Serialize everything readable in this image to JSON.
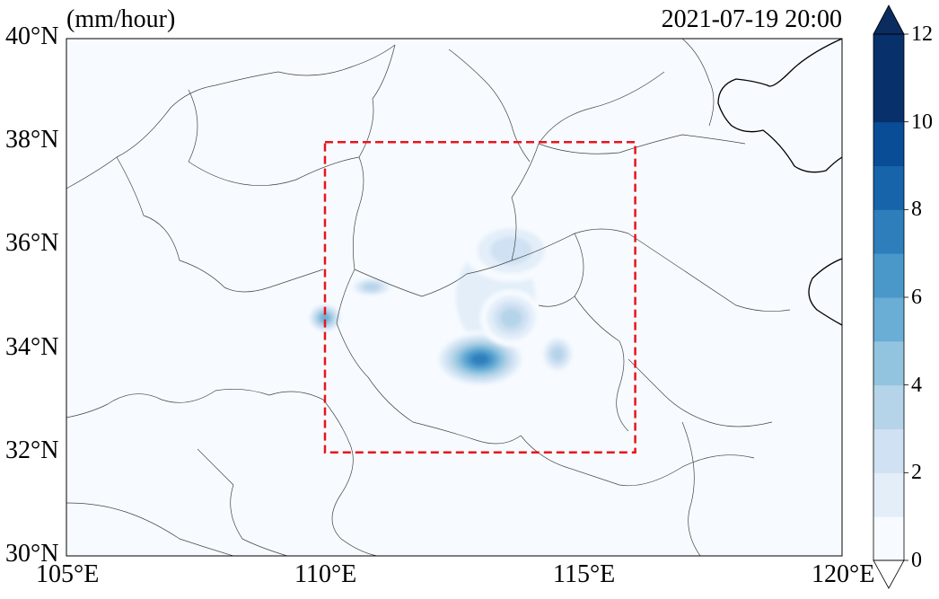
{
  "header": {
    "unit_label": "(mm/hour)",
    "timestamp": "2021-07-19 20:00"
  },
  "map": {
    "lon_range": [
      105,
      120
    ],
    "lat_range": [
      30,
      40
    ],
    "lat_ticks": [
      {
        "value": 40,
        "label": "40°N"
      },
      {
        "value": 38,
        "label": "38°N"
      },
      {
        "value": 36,
        "label": "36°N"
      },
      {
        "value": 34,
        "label": "34°N"
      },
      {
        "value": 32,
        "label": "32°N"
      },
      {
        "value": 30,
        "label": "30°N"
      }
    ],
    "lon_ticks": [
      {
        "value": 105,
        "label": "105°E"
      },
      {
        "value": 110,
        "label": "110°E"
      },
      {
        "value": 115,
        "label": "115°E"
      },
      {
        "value": 120,
        "label": "120°E"
      }
    ],
    "focus_box": {
      "lon": [
        110,
        116
      ],
      "lat": [
        32,
        38
      ],
      "color": "#e8141c",
      "style": "dashed"
    }
  },
  "colorbar": {
    "min": 0,
    "max": 12,
    "step": 1,
    "extend": "both",
    "tick_labels": [
      {
        "value": 0,
        "label": "0"
      },
      {
        "value": 2,
        "label": "2"
      },
      {
        "value": 4,
        "label": "4"
      },
      {
        "value": 6,
        "label": "6"
      },
      {
        "value": 8,
        "label": "8"
      },
      {
        "value": 10,
        "label": "10"
      },
      {
        "value": 12,
        "label": "12"
      }
    ],
    "colors": [
      "#f7fbff",
      "#e3eef9",
      "#cfe1f2",
      "#b5d4e9",
      "#93c4df",
      "#6aadd5",
      "#4a98c9",
      "#2e7ebc",
      "#1764ab",
      "#084d96",
      "#08306b",
      "#08306b"
    ],
    "over_color": "#0b2c5f",
    "under_color": "#ffffff"
  },
  "precip_cells": [
    {
      "lon": 113.3,
      "lat": 35.0,
      "rx": 1.25,
      "ry": 1.6,
      "value": 2.4
    },
    {
      "lon": 113.0,
      "lat": 34.5,
      "rx": 2.1,
      "ry": 1.9,
      "value": 1.8
    },
    {
      "lon": 113.0,
      "lat": 33.8,
      "rx": 0.9,
      "ry": 0.55,
      "value": 8.6
    },
    {
      "lon": 113.6,
      "lat": 34.6,
      "rx": 0.6,
      "ry": 0.55,
      "value": 4.2
    },
    {
      "lon": 114.5,
      "lat": 33.9,
      "rx": 0.35,
      "ry": 0.4,
      "value": 4.5
    },
    {
      "lon": 110.0,
      "lat": 34.6,
      "rx": 0.35,
      "ry": 0.3,
      "value": 6.5
    },
    {
      "lon": 110.9,
      "lat": 35.2,
      "rx": 0.45,
      "ry": 0.2,
      "value": 4.8
    },
    {
      "lon": 111.2,
      "lat": 35.3,
      "rx": 0.8,
      "ry": 0.55,
      "value": 1.4
    },
    {
      "lon": 113.6,
      "lat": 35.9,
      "rx": 0.9,
      "ry": 0.6,
      "value": 3.0
    },
    {
      "lon": 108.3,
      "lat": 32.2,
      "rx": 0.7,
      "ry": 0.22,
      "value": 1.2
    },
    {
      "lon": 108.0,
      "lat": 31.1,
      "rx": 0.4,
      "ry": 0.35,
      "value": 1.0
    },
    {
      "lon": 112.2,
      "lat": 31.6,
      "rx": 0.2,
      "ry": 0.3,
      "value": 1.0
    },
    {
      "lon": 111.1,
      "lat": 36.4,
      "rx": 0.25,
      "ry": 0.2,
      "value": 1.1
    }
  ]
}
